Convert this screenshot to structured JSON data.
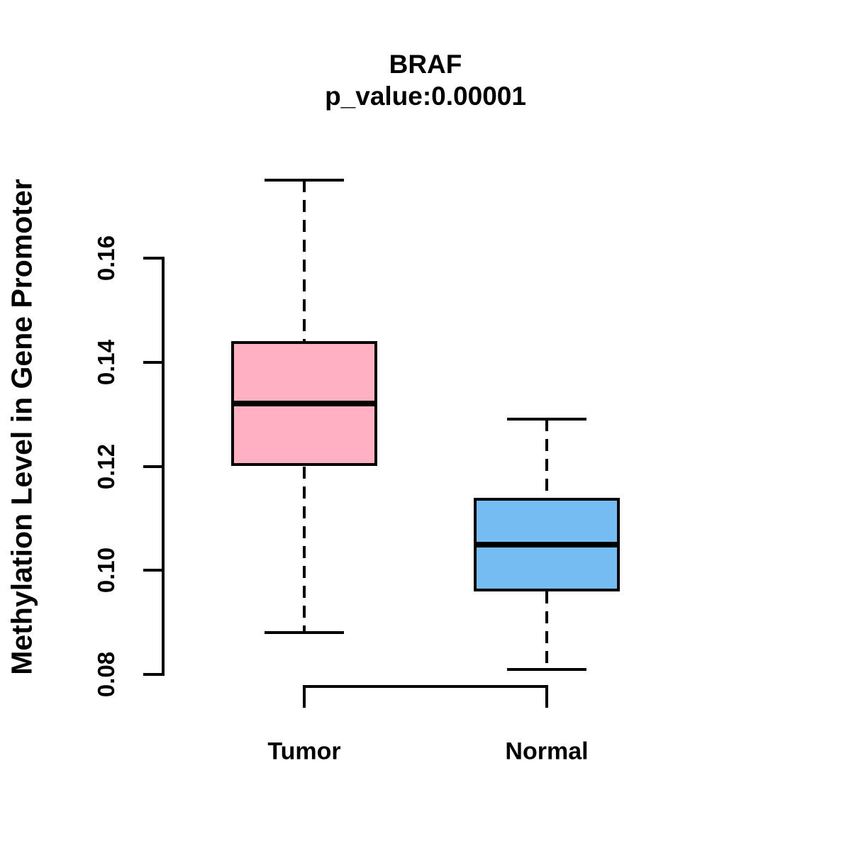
{
  "figure": {
    "title": "BRAF",
    "subtitle": "p_value:0.00001",
    "y_axis_label": "Methylation Level in Gene Promoter"
  },
  "chart_data": {
    "type": "boxplot",
    "title": "BRAF",
    "subtitle": "p_value:0.00001",
    "xlabel": "",
    "ylabel": "Methylation Level in Gene Promoter",
    "categories": [
      "Tumor",
      "Normal"
    ],
    "y_ticks": [
      "0.08",
      "0.10",
      "0.12",
      "0.14",
      "0.16"
    ],
    "ylim": [
      0.075,
      0.178
    ],
    "grid": false,
    "legend": "none",
    "series": [
      {
        "name": "Tumor",
        "lower_whisker": 0.088,
        "q1": 0.12,
        "median": 0.132,
        "q3": 0.144,
        "upper_whisker": 0.175,
        "outliers": [],
        "fill_color": "#FFB1C1"
      },
      {
        "name": "Normal",
        "lower_whisker": 0.081,
        "q1": 0.096,
        "median": 0.105,
        "q3": 0.114,
        "upper_whisker": 0.129,
        "outliers": [],
        "fill_color": "#73BDF2"
      }
    ],
    "colors": {
      "box_border": "#000000",
      "median_line": "#000000",
      "axis": "#000000",
      "text": "#000000",
      "background": "#ffffff"
    }
  }
}
